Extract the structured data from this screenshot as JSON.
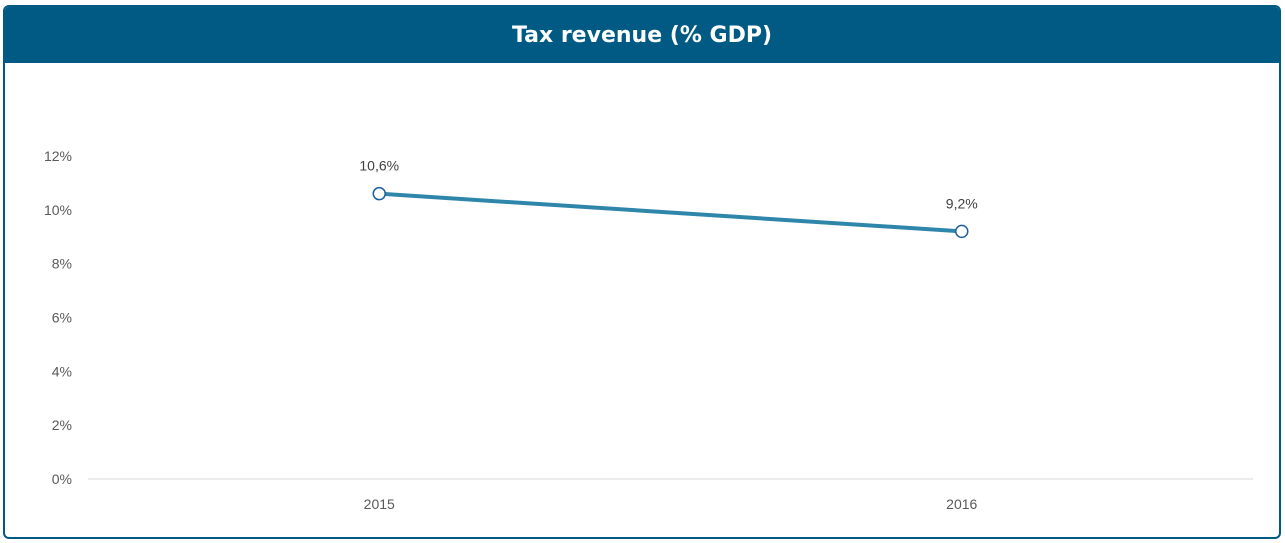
{
  "colors": {
    "header": "#005a84",
    "line": "#2e86ab",
    "axis": "#d9d9d9",
    "text": "#595959"
  },
  "chart_data": {
    "type": "line",
    "title": "Tax revenue (% GDP)",
    "categories": [
      "2015",
      "2016"
    ],
    "series": [
      {
        "values": [
          10.6,
          9.2
        ]
      }
    ],
    "data_labels": [
      "10,6%",
      "9,2%"
    ],
    "ylim": [
      0,
      12
    ],
    "yticks": [
      0,
      2,
      4,
      6,
      8,
      10,
      12
    ],
    "ytick_labels": [
      "0%",
      "2%",
      "4%",
      "6%",
      "8%",
      "10%",
      "12%"
    ],
    "grid": false,
    "legend": "none"
  }
}
